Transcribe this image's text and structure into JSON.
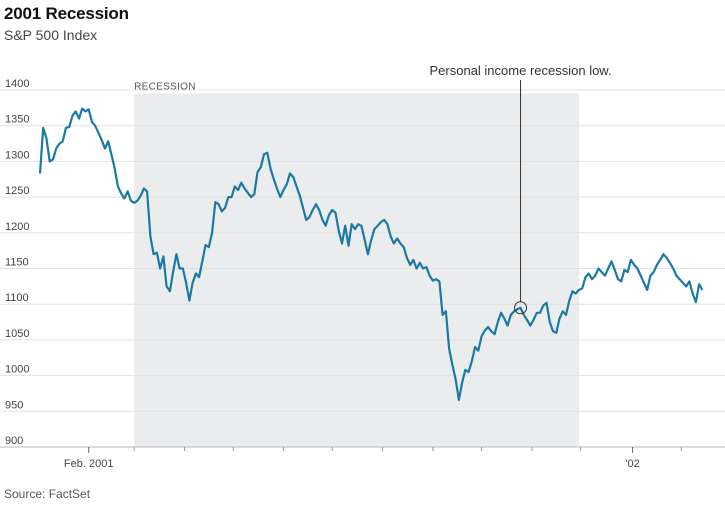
{
  "chart_data": {
    "type": "line",
    "title": "2001 Recession",
    "subtitle": "S&P 500 Index",
    "source": "Source: FactSet",
    "ylim": [
      900,
      1400
    ],
    "yticks": [
      900,
      950,
      1000,
      1050,
      1100,
      1150,
      1200,
      1250,
      1300,
      1350,
      1400
    ],
    "xlim": [
      "2001-01-02",
      "2002-02-15"
    ],
    "x_tick_labels": [
      {
        "date": "2001-02-01",
        "label": "Feb. 2001"
      },
      {
        "date": "2002-01-02",
        "label": "'02"
      }
    ],
    "x_minor_ticks": [
      "2001-03-01",
      "2001-04-01",
      "2001-05-01",
      "2001-06-01",
      "2001-07-01",
      "2001-08-01",
      "2001-09-01",
      "2001-10-01",
      "2001-11-01",
      "2001-12-01",
      "2002-02-01"
    ],
    "grid": true,
    "color": "#1a7aa3",
    "shaded_region": {
      "label": "RECESSION",
      "start": "2001-03-01",
      "end": "2001-11-30"
    },
    "annotation": {
      "text": "Personal income recession low.",
      "date": "2001-10-25",
      "value": 1095
    },
    "series": [
      {
        "values": [
          [
            "2001-01-02",
            1283
          ],
          [
            "2001-01-04",
            1347
          ],
          [
            "2001-01-06",
            1332
          ],
          [
            "2001-01-08",
            1300
          ],
          [
            "2001-01-10",
            1303
          ],
          [
            "2001-01-12",
            1318
          ],
          [
            "2001-01-14",
            1325
          ],
          [
            "2001-01-16",
            1328
          ],
          [
            "2001-01-18",
            1347
          ],
          [
            "2001-01-20",
            1348
          ],
          [
            "2001-01-22",
            1364
          ],
          [
            "2001-01-24",
            1370
          ],
          [
            "2001-01-26",
            1360
          ],
          [
            "2001-01-28",
            1374
          ],
          [
            "2001-01-30",
            1370
          ],
          [
            "2001-02-01",
            1373
          ],
          [
            "2001-02-03",
            1355
          ],
          [
            "2001-02-05",
            1350
          ],
          [
            "2001-02-07",
            1340
          ],
          [
            "2001-02-09",
            1330
          ],
          [
            "2001-02-11",
            1318
          ],
          [
            "2001-02-13",
            1328
          ],
          [
            "2001-02-15",
            1310
          ],
          [
            "2001-02-17",
            1290
          ],
          [
            "2001-02-19",
            1265
          ],
          [
            "2001-02-21",
            1255
          ],
          [
            "2001-02-23",
            1248
          ],
          [
            "2001-02-25",
            1258
          ],
          [
            "2001-02-27",
            1245
          ],
          [
            "2001-03-01",
            1242
          ],
          [
            "2001-03-03",
            1245
          ],
          [
            "2001-03-05",
            1252
          ],
          [
            "2001-03-07",
            1262
          ],
          [
            "2001-03-09",
            1258
          ],
          [
            "2001-03-11",
            1195
          ],
          [
            "2001-03-13",
            1170
          ],
          [
            "2001-03-15",
            1172
          ],
          [
            "2001-03-17",
            1150
          ],
          [
            "2001-03-19",
            1167
          ],
          [
            "2001-03-21",
            1125
          ],
          [
            "2001-03-23",
            1118
          ],
          [
            "2001-03-25",
            1145
          ],
          [
            "2001-03-27",
            1170
          ],
          [
            "2001-03-29",
            1150
          ],
          [
            "2001-03-31",
            1150
          ],
          [
            "2001-04-02",
            1130
          ],
          [
            "2001-04-04",
            1105
          ],
          [
            "2001-04-06",
            1130
          ],
          [
            "2001-04-08",
            1143
          ],
          [
            "2001-04-10",
            1138
          ],
          [
            "2001-04-12",
            1160
          ],
          [
            "2001-04-14",
            1183
          ],
          [
            "2001-04-16",
            1180
          ],
          [
            "2001-04-18",
            1200
          ],
          [
            "2001-04-20",
            1243
          ],
          [
            "2001-04-22",
            1240
          ],
          [
            "2001-04-24",
            1230
          ],
          [
            "2001-04-26",
            1235
          ],
          [
            "2001-04-28",
            1250
          ],
          [
            "2001-04-30",
            1250
          ],
          [
            "2001-05-02",
            1265
          ],
          [
            "2001-05-04",
            1260
          ],
          [
            "2001-05-06",
            1270
          ],
          [
            "2001-05-08",
            1262
          ],
          [
            "2001-05-10",
            1256
          ],
          [
            "2001-05-12",
            1250
          ],
          [
            "2001-05-14",
            1254
          ],
          [
            "2001-05-16",
            1285
          ],
          [
            "2001-05-18",
            1292
          ],
          [
            "2001-05-20",
            1310
          ],
          [
            "2001-05-22",
            1312
          ],
          [
            "2001-05-24",
            1290
          ],
          [
            "2001-05-26",
            1275
          ],
          [
            "2001-05-28",
            1262
          ],
          [
            "2001-05-30",
            1250
          ],
          [
            "2001-06-01",
            1260
          ],
          [
            "2001-06-03",
            1268
          ],
          [
            "2001-06-05",
            1283
          ],
          [
            "2001-06-07",
            1278
          ],
          [
            "2001-06-09",
            1265
          ],
          [
            "2001-06-11",
            1252
          ],
          [
            "2001-06-13",
            1235
          ],
          [
            "2001-06-15",
            1218
          ],
          [
            "2001-06-17",
            1222
          ],
          [
            "2001-06-19",
            1232
          ],
          [
            "2001-06-21",
            1240
          ],
          [
            "2001-06-23",
            1232
          ],
          [
            "2001-06-25",
            1218
          ],
          [
            "2001-06-27",
            1210
          ],
          [
            "2001-06-29",
            1225
          ],
          [
            "2001-07-01",
            1232
          ],
          [
            "2001-07-03",
            1228
          ],
          [
            "2001-07-05",
            1203
          ],
          [
            "2001-07-07",
            1185
          ],
          [
            "2001-07-09",
            1210
          ],
          [
            "2001-07-11",
            1182
          ],
          [
            "2001-07-13",
            1212
          ],
          [
            "2001-07-15",
            1205
          ],
          [
            "2001-07-17",
            1212
          ],
          [
            "2001-07-19",
            1210
          ],
          [
            "2001-07-21",
            1190
          ],
          [
            "2001-07-23",
            1170
          ],
          [
            "2001-07-25",
            1190
          ],
          [
            "2001-07-27",
            1205
          ],
          [
            "2001-07-29",
            1210
          ],
          [
            "2001-07-31",
            1215
          ],
          [
            "2001-08-02",
            1218
          ],
          [
            "2001-08-04",
            1212
          ],
          [
            "2001-08-06",
            1195
          ],
          [
            "2001-08-08",
            1185
          ],
          [
            "2001-08-10",
            1192
          ],
          [
            "2001-08-12",
            1185
          ],
          [
            "2001-08-14",
            1180
          ],
          [
            "2001-08-16",
            1165
          ],
          [
            "2001-08-18",
            1155
          ],
          [
            "2001-08-20",
            1162
          ],
          [
            "2001-08-22",
            1150
          ],
          [
            "2001-08-24",
            1158
          ],
          [
            "2001-08-26",
            1150
          ],
          [
            "2001-08-28",
            1152
          ],
          [
            "2001-08-30",
            1140
          ],
          [
            "2001-09-01",
            1133
          ],
          [
            "2001-09-03",
            1135
          ],
          [
            "2001-09-05",
            1132
          ],
          [
            "2001-09-07",
            1085
          ],
          [
            "2001-09-09",
            1090
          ],
          [
            "2001-09-11",
            1038
          ],
          [
            "2001-09-13",
            1015
          ],
          [
            "2001-09-15",
            995
          ],
          [
            "2001-09-17",
            966
          ],
          [
            "2001-09-19",
            990
          ],
          [
            "2001-09-21",
            1008
          ],
          [
            "2001-09-23",
            1005
          ],
          [
            "2001-09-25",
            1020
          ],
          [
            "2001-09-27",
            1040
          ],
          [
            "2001-09-29",
            1035
          ],
          [
            "2001-10-01",
            1055
          ],
          [
            "2001-10-03",
            1063
          ],
          [
            "2001-10-05",
            1068
          ],
          [
            "2001-10-07",
            1062
          ],
          [
            "2001-10-09",
            1058
          ],
          [
            "2001-10-11",
            1075
          ],
          [
            "2001-10-13",
            1088
          ],
          [
            "2001-10-15",
            1080
          ],
          [
            "2001-10-17",
            1070
          ],
          [
            "2001-10-19",
            1085
          ],
          [
            "2001-10-21",
            1090
          ],
          [
            "2001-10-23",
            1093
          ],
          [
            "2001-10-25",
            1095
          ],
          [
            "2001-10-27",
            1085
          ],
          [
            "2001-10-29",
            1078
          ],
          [
            "2001-10-31",
            1070
          ],
          [
            "2001-11-02",
            1078
          ],
          [
            "2001-11-04",
            1088
          ],
          [
            "2001-11-06",
            1088
          ],
          [
            "2001-11-08",
            1098
          ],
          [
            "2001-11-10",
            1102
          ],
          [
            "2001-11-12",
            1075
          ],
          [
            "2001-11-14",
            1062
          ],
          [
            "2001-11-16",
            1060
          ],
          [
            "2001-11-18",
            1080
          ],
          [
            "2001-11-20",
            1090
          ],
          [
            "2001-11-22",
            1085
          ],
          [
            "2001-11-24",
            1105
          ],
          [
            "2001-11-26",
            1118
          ],
          [
            "2001-11-28",
            1115
          ],
          [
            "2001-11-30",
            1120
          ],
          [
            "2001-12-02",
            1122
          ],
          [
            "2001-12-04",
            1138
          ],
          [
            "2001-12-06",
            1143
          ],
          [
            "2001-12-08",
            1135
          ],
          [
            "2001-12-10",
            1140
          ],
          [
            "2001-12-12",
            1150
          ],
          [
            "2001-12-14",
            1145
          ],
          [
            "2001-12-16",
            1140
          ],
          [
            "2001-12-18",
            1150
          ],
          [
            "2001-12-20",
            1160
          ],
          [
            "2001-12-22",
            1148
          ],
          [
            "2001-12-24",
            1135
          ],
          [
            "2001-12-26",
            1132
          ],
          [
            "2001-12-28",
            1148
          ],
          [
            "2001-12-30",
            1145
          ],
          [
            "2002-01-01",
            1162
          ],
          [
            "2002-01-03",
            1155
          ],
          [
            "2002-01-05",
            1150
          ],
          [
            "2002-01-07",
            1140
          ],
          [
            "2002-01-09",
            1130
          ],
          [
            "2002-01-11",
            1120
          ],
          [
            "2002-01-13",
            1140
          ],
          [
            "2002-01-15",
            1145
          ],
          [
            "2002-01-17",
            1155
          ],
          [
            "2002-01-19",
            1162
          ],
          [
            "2002-01-21",
            1170
          ],
          [
            "2002-01-23",
            1165
          ],
          [
            "2002-01-25",
            1158
          ],
          [
            "2002-01-27",
            1150
          ],
          [
            "2002-01-29",
            1140
          ],
          [
            "2002-01-31",
            1135
          ],
          [
            "2002-02-02",
            1130
          ],
          [
            "2002-02-04",
            1125
          ],
          [
            "2002-02-06",
            1132
          ],
          [
            "2002-02-08",
            1115
          ],
          [
            "2002-02-10",
            1103
          ],
          [
            "2002-02-12",
            1128
          ],
          [
            "2002-02-14",
            1120
          ]
        ]
      }
    ]
  }
}
